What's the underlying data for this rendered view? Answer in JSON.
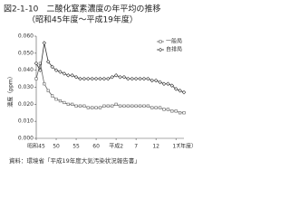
{
  "chart_data": {
    "type": "line",
    "title": "図2-1-10　二酸化窒素濃度の年平均の推移",
    "subtitle": "（昭和45年度～平成19年度）",
    "y_label": "濃度（ppm）",
    "x_label": "（年度）",
    "source": "資料：環境省「平成19年度大気汚染状況報告書」",
    "categories": [
      "昭和45",
      null,
      null,
      null,
      null,
      "50",
      null,
      null,
      null,
      null,
      "55",
      null,
      null,
      null,
      null,
      "60",
      null,
      null,
      null,
      null,
      "平成2",
      null,
      null,
      null,
      null,
      "7",
      null,
      null,
      null,
      null,
      "12",
      null,
      null,
      null,
      null,
      "17",
      null,
      null
    ],
    "series": [
      {
        "name": "一般局",
        "color": "#666666",
        "marker": "square",
        "values": [
          0.035,
          0.044,
          0.032,
          0.028,
          0.025,
          0.023,
          0.022,
          0.021,
          0.02,
          0.02,
          0.019,
          0.019,
          0.019,
          0.018,
          0.018,
          0.018,
          0.018,
          0.019,
          0.019,
          0.019,
          0.02,
          0.019,
          0.019,
          0.019,
          0.019,
          0.019,
          0.019,
          0.019,
          0.019,
          0.018,
          0.018,
          0.018,
          0.017,
          0.017,
          0.016,
          0.016,
          0.015,
          0.015
        ]
      },
      {
        "name": "自排局",
        "color": "#333333",
        "marker": "diamond",
        "values": [
          0.044,
          0.04,
          0.056,
          0.045,
          0.042,
          0.04,
          0.039,
          0.038,
          0.037,
          0.037,
          0.036,
          0.035,
          0.035,
          0.035,
          0.035,
          0.035,
          0.035,
          0.035,
          0.035,
          0.036,
          0.037,
          0.036,
          0.036,
          0.035,
          0.035,
          0.035,
          0.035,
          0.035,
          0.035,
          0.034,
          0.034,
          0.033,
          0.032,
          0.032,
          0.031,
          0.029,
          0.028,
          0.027
        ]
      }
    ],
    "ylim": [
      0,
      0.06
    ],
    "yticks": [
      {
        "value": 0,
        "label": "0.000"
      },
      {
        "value": 0.01,
        "label": "0.010"
      },
      {
        "value": 0.02,
        "label": "0.020"
      },
      {
        "value": 0.03,
        "label": "0.030"
      },
      {
        "value": 0.04,
        "label": "0.040"
      },
      {
        "value": 0.05,
        "label": "0.050"
      },
      {
        "value": 0.06,
        "label": "0.060"
      }
    ],
    "legend": "upper right"
  }
}
